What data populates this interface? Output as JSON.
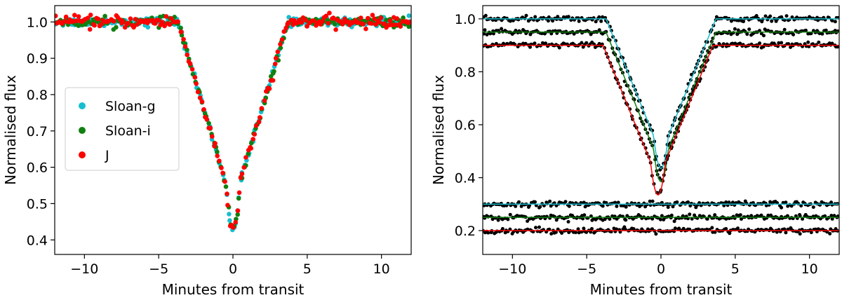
{
  "chart_data": [
    {
      "type": "scatter",
      "xlabel": "Minutes from transit",
      "ylabel": "Normalised flux",
      "xlim": [
        -12,
        12
      ],
      "ylim": [
        0.36,
        1.045
      ],
      "xticks": [
        -10,
        -5,
        0,
        5,
        10
      ],
      "yticks": [
        0.4,
        0.5,
        0.6,
        0.7,
        0.8,
        0.9,
        1.0
      ],
      "xtick_labels": [
        "−10",
        "−5",
        "0",
        "5",
        "10"
      ],
      "ytick_labels": [
        "0.4",
        "0.5",
        "0.6",
        "0.7",
        "0.8",
        "0.9",
        "1.0"
      ],
      "legend": {
        "position": "center-left",
        "entries": [
          "Sloan-g",
          "Sloan-i",
          "J"
        ]
      },
      "transit_model": {
        "out_of_transit_flux": 1.0,
        "min_flux": 0.435,
        "ingress_start": -3.7,
        "egress_end": 3.7,
        "ingress_duration": 3.2
      },
      "series": [
        {
          "name": "Sloan-g",
          "color": "#17becf",
          "noise": 0.006,
          "points": 200
        },
        {
          "name": "Sloan-i",
          "color": "#118011",
          "noise": 0.006,
          "points": 200
        },
        {
          "name": "J",
          "color": "#ff0000",
          "noise": 0.008,
          "points": 200
        }
      ]
    },
    {
      "type": "scatter",
      "xlabel": "Minutes from transit",
      "ylabel": "Normalised flux",
      "xlim": [
        -12,
        12
      ],
      "ylim": [
        0.11,
        1.05
      ],
      "xticks": [
        -10,
        -5,
        0,
        5,
        10
      ],
      "yticks": [
        0.2,
        0.4,
        0.6,
        0.8,
        1.0
      ],
      "xtick_labels": [
        "−10",
        "−5",
        "0",
        "5",
        "10"
      ],
      "ytick_labels": [
        "0.2",
        "0.4",
        "0.6",
        "0.8",
        "1.0"
      ],
      "series": [
        {
          "band": "Sloan-g",
          "kind": "light curve",
          "offset": 0.0,
          "min_flux": 0.435,
          "model_color": "#17becf",
          "point_color": "#000000"
        },
        {
          "band": "Sloan-i",
          "kind": "light curve",
          "offset": -0.05,
          "min_flux": 0.435,
          "model_color": "#118011",
          "point_color": "#000000"
        },
        {
          "band": "J",
          "kind": "light curve",
          "offset": -0.1,
          "min_flux": 0.435,
          "shift": -0.2,
          "model_color": "#ff0000",
          "point_color": "#000000"
        },
        {
          "band": "Sloan-g",
          "kind": "residuals",
          "level": 0.3,
          "model_color": "#17becf",
          "point_color": "#000000"
        },
        {
          "band": "Sloan-i",
          "kind": "residuals",
          "level": 0.25,
          "model_color": "#118011",
          "point_color": "#000000"
        },
        {
          "band": "J",
          "kind": "residuals",
          "level": 0.2,
          "model_color": "#ff0000",
          "point_color": "#000000"
        }
      ]
    }
  ]
}
